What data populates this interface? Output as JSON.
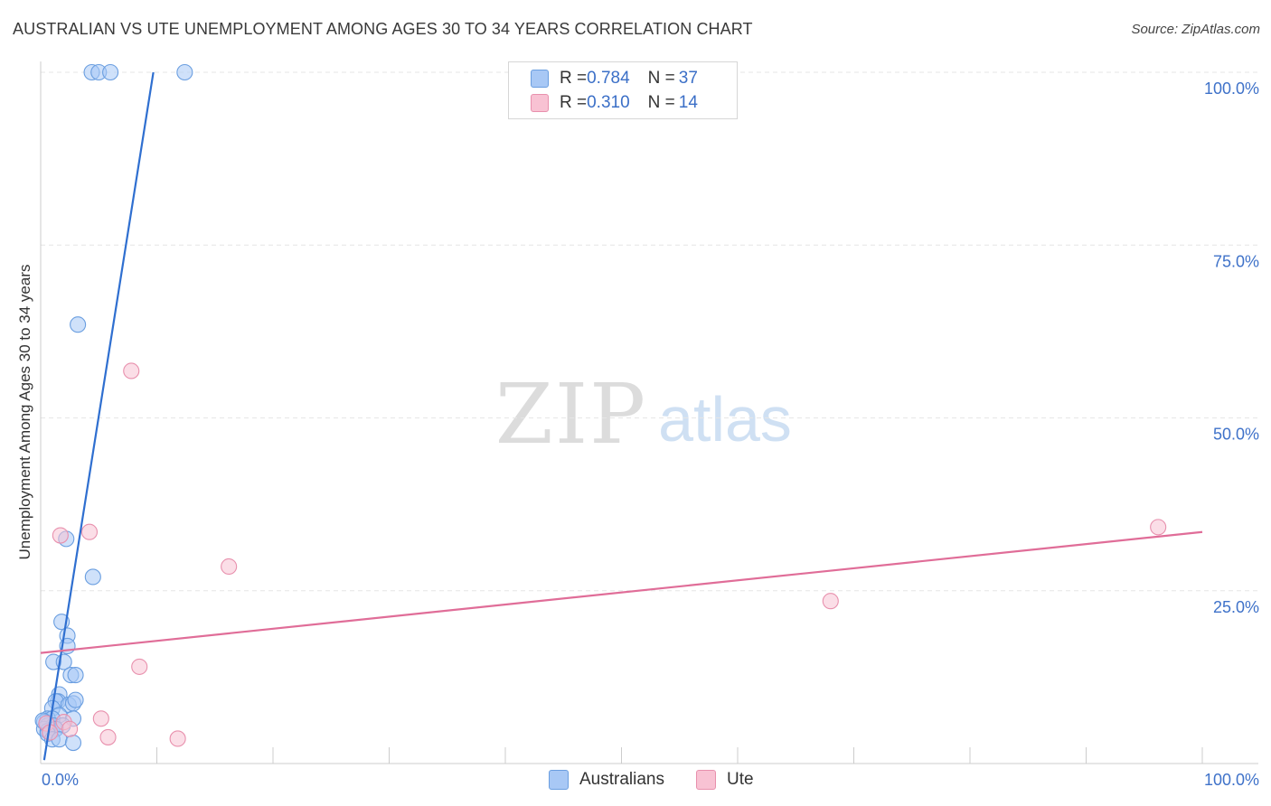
{
  "title": "AUSTRALIAN VS UTE UNEMPLOYMENT AMONG AGES 30 TO 34 YEARS CORRELATION CHART",
  "source": "Source: ZipAtlas.com",
  "watermark": {
    "zip": "ZIP",
    "atlas": "atlas"
  },
  "legend": {
    "rows": [
      {
        "r_label": "R = ",
        "r_value": "0.784",
        "n_label": "N = ",
        "n_value": "37",
        "color": "#a8c8f5",
        "border": "#6a9ee0"
      },
      {
        "r_label": "R = ",
        "r_value": "0.310",
        "n_label": "N = ",
        "n_value": "14",
        "color": "#f8c2d3",
        "border": "#e890ad"
      }
    ]
  },
  "bottom_legend": [
    {
      "label": "Australians",
      "color": "#a8c8f5",
      "border": "#6a9ee0"
    },
    {
      "label": "Ute",
      "color": "#f8c2d3",
      "border": "#e890ad"
    }
  ],
  "chart_data": {
    "type": "scatter",
    "title": "AUSTRALIAN VS UTE UNEMPLOYMENT AMONG AGES 30 TO 34 YEARS CORRELATION CHART",
    "xlabel": "",
    "ylabel": "Unemployment Among Ages 30 to 34 years",
    "xlim": [
      0,
      100
    ],
    "ylim": [
      0,
      100
    ],
    "x_tick_labels": [
      {
        "value": 0,
        "label": "0.0%"
      },
      {
        "value": 100,
        "label": "100.0%"
      }
    ],
    "y_tick_labels": [
      {
        "value": 25,
        "label": "25.0%"
      },
      {
        "value": 50,
        "label": "50.0%"
      },
      {
        "value": 75,
        "label": "75.0%"
      },
      {
        "value": 100,
        "label": "100.0%"
      }
    ],
    "series": [
      {
        "name": "Australians",
        "color": "#a8c8f5",
        "edge": "#6a9ee0",
        "line_color": "#2f6fd0",
        "trend": {
          "x0": 0.3,
          "y0": 0.5,
          "x1": 9.7,
          "y1": 100
        },
        "points": [
          [
            4.4,
            100
          ],
          [
            5.0,
            100
          ],
          [
            6.0,
            100
          ],
          [
            12.4,
            100
          ],
          [
            3.2,
            63.5
          ],
          [
            2.2,
            32.5
          ],
          [
            4.5,
            27.0
          ],
          [
            1.8,
            20.5
          ],
          [
            2.3,
            18.5
          ],
          [
            2.3,
            17.0
          ],
          [
            1.1,
            14.7
          ],
          [
            2.0,
            14.7
          ],
          [
            2.6,
            12.8
          ],
          [
            3.0,
            12.8
          ],
          [
            1.6,
            10.0
          ],
          [
            1.5,
            9.0
          ],
          [
            1.3,
            9.0
          ],
          [
            2.4,
            8.5
          ],
          [
            2.8,
            8.7
          ],
          [
            3.0,
            9.2
          ],
          [
            1.0,
            8.0
          ],
          [
            1.6,
            7.0
          ],
          [
            0.6,
            6.5
          ],
          [
            1.0,
            6.5
          ],
          [
            2.8,
            6.5
          ],
          [
            0.3,
            6.0
          ],
          [
            0.6,
            5.5
          ],
          [
            1.1,
            5.5
          ],
          [
            1.9,
            5.5
          ],
          [
            0.3,
            5.0
          ],
          [
            0.6,
            4.7
          ],
          [
            1.3,
            5.0
          ],
          [
            0.6,
            4.3
          ],
          [
            1.0,
            3.5
          ],
          [
            1.6,
            3.5
          ],
          [
            2.8,
            3.0
          ],
          [
            0.2,
            6.2
          ]
        ]
      },
      {
        "name": "Ute",
        "color": "#f8c2d3",
        "edge": "#e890ad",
        "line_color": "#e06d98",
        "trend": {
          "x0": 0,
          "y0": 16.0,
          "x1": 100,
          "y1": 33.5
        },
        "points": [
          [
            7.8,
            56.8
          ],
          [
            4.2,
            33.5
          ],
          [
            1.7,
            33.0
          ],
          [
            16.2,
            28.5
          ],
          [
            96.2,
            34.2
          ],
          [
            68.0,
            23.5
          ],
          [
            8.5,
            14.0
          ],
          [
            5.2,
            6.5
          ],
          [
            2.0,
            6.0
          ],
          [
            2.5,
            5.0
          ],
          [
            5.8,
            3.8
          ],
          [
            11.8,
            3.6
          ],
          [
            0.5,
            5.8
          ],
          [
            0.8,
            4.5
          ]
        ]
      }
    ]
  }
}
